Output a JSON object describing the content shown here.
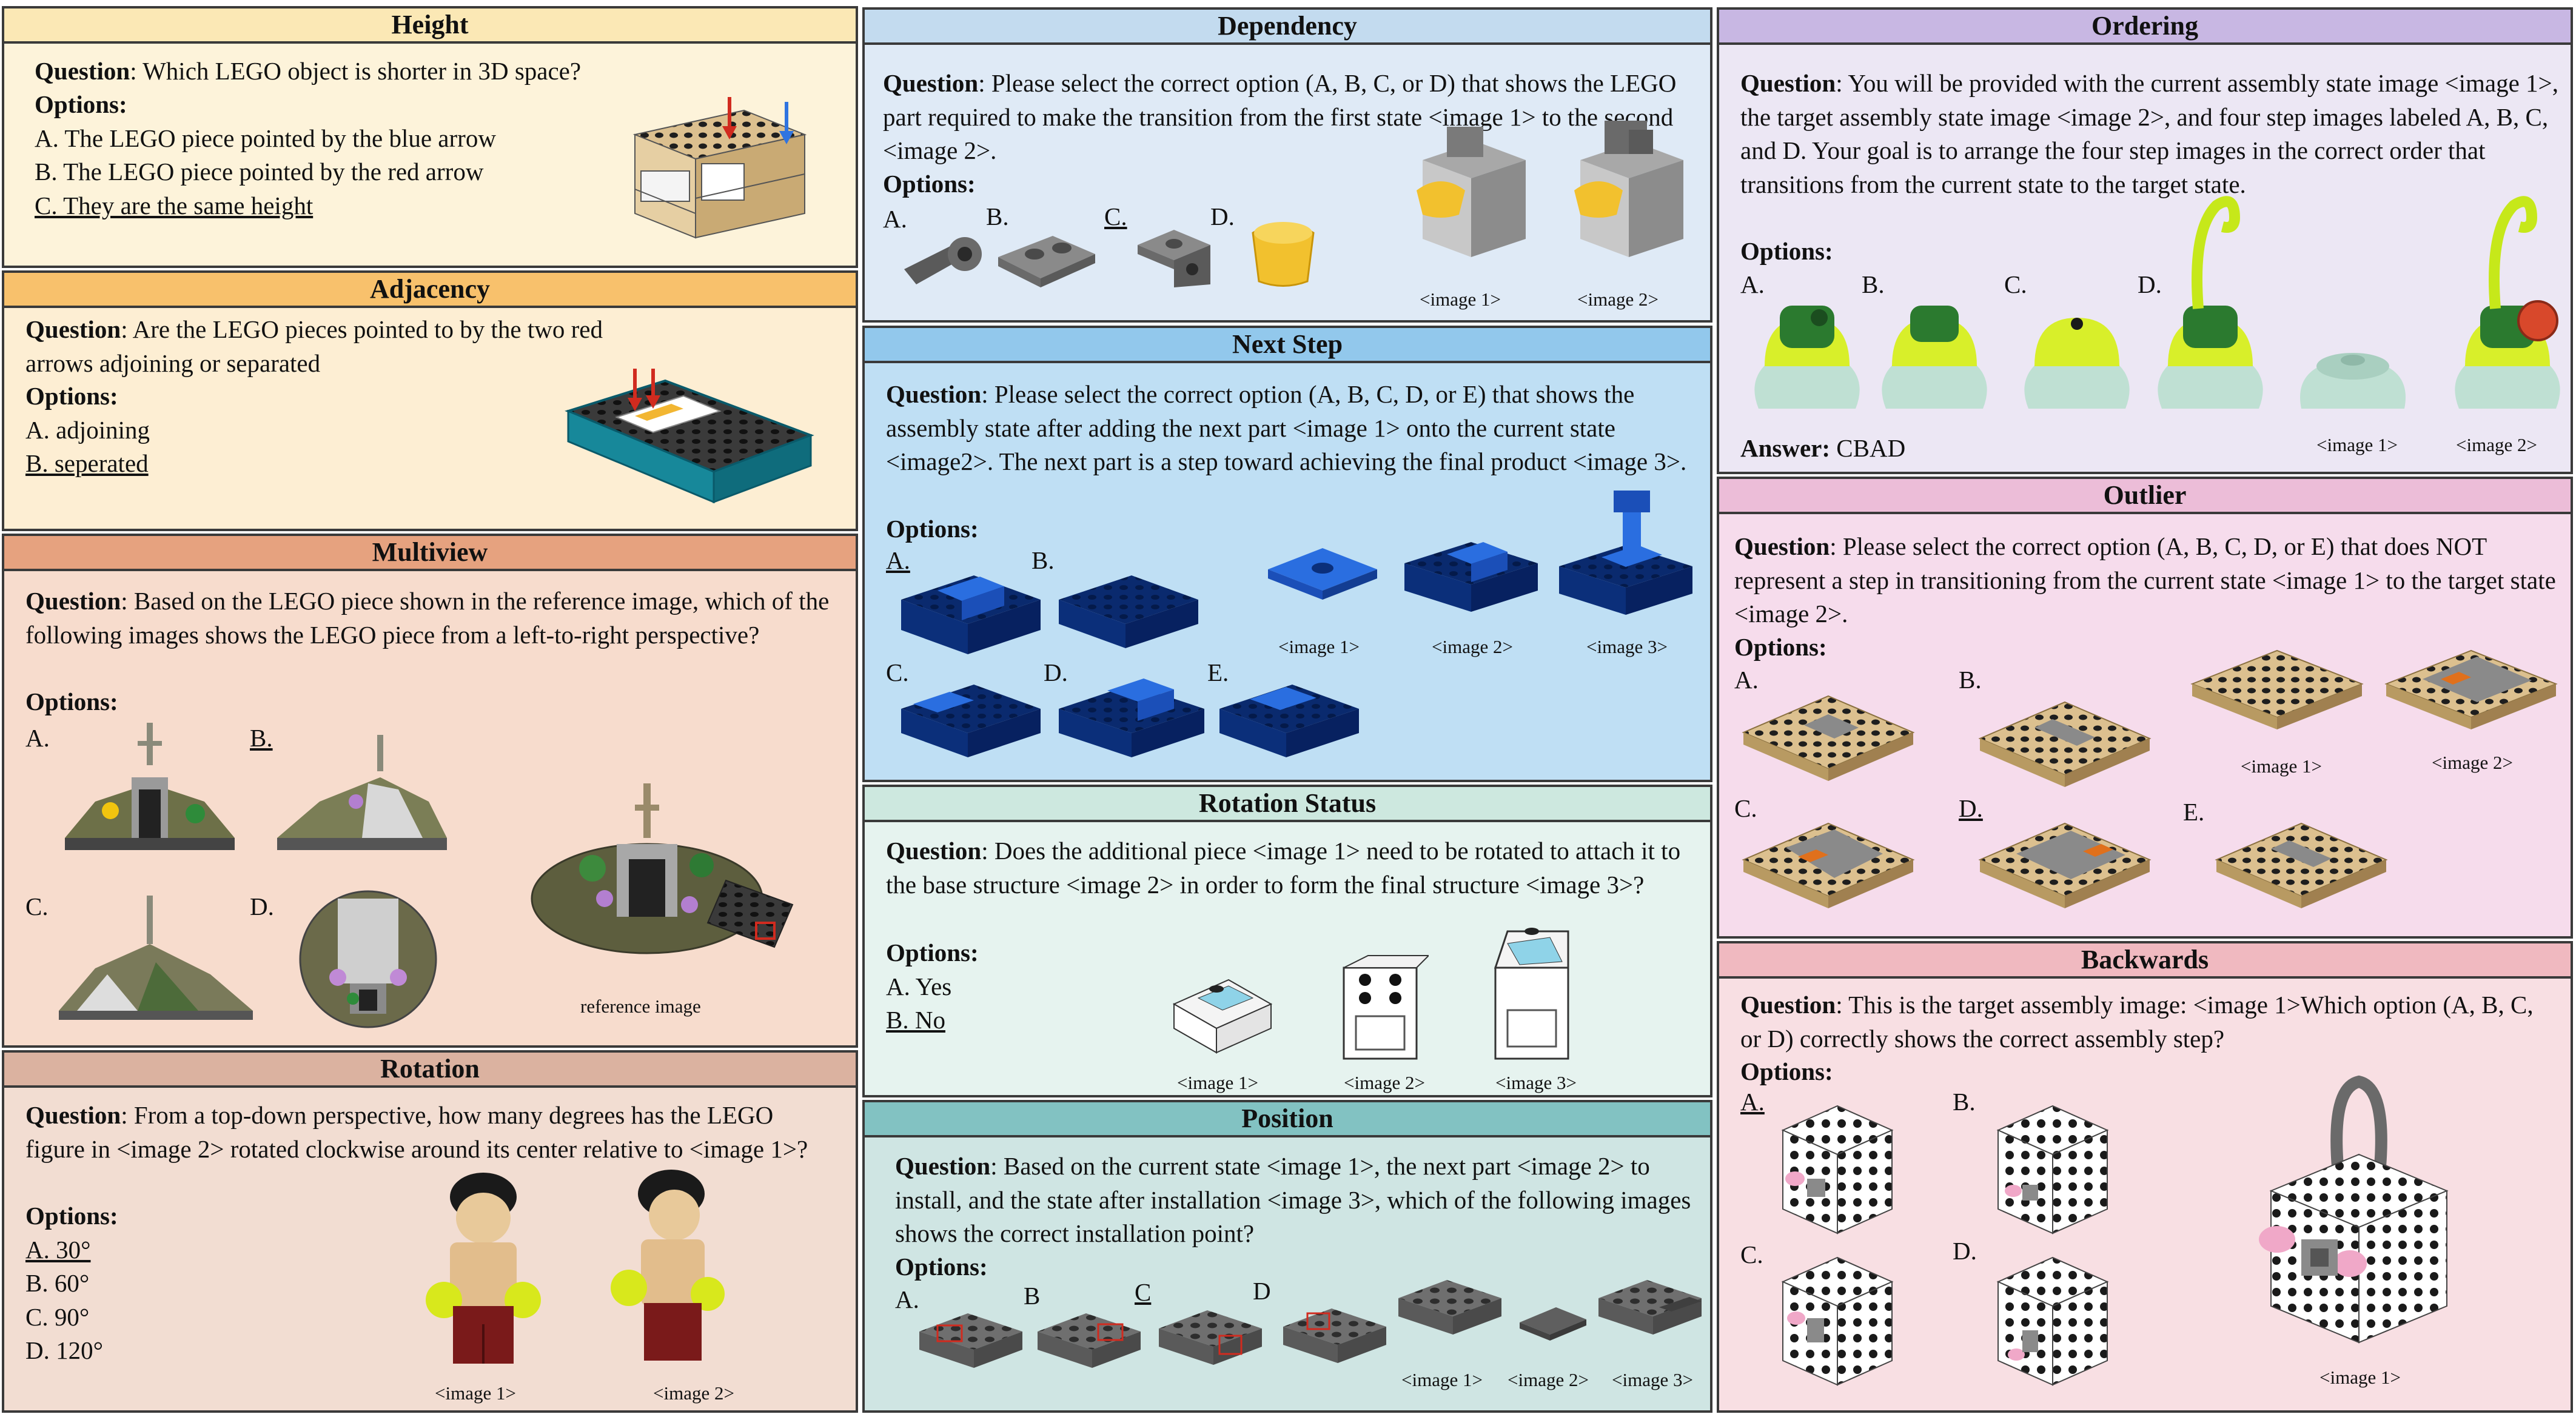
{
  "panels": {
    "height": {
      "title": "Height",
      "q_label": "Question",
      "question": ": Which LEGO object is shorter in 3D space?",
      "options_label": "Options:",
      "options": [
        "A. The LEGO piece pointed by the blue arrow",
        "B. The LEGO piece pointed by the red arrow",
        "C. They are the same height"
      ]
    },
    "adjacency": {
      "title": "Adjacency",
      "q_label": "Question",
      "question": ": Are the LEGO pieces pointed to by the two red arrows adjoining or separated",
      "options_label": "Options:",
      "options": [
        "A. adjoining",
        "B. seperated"
      ]
    },
    "multiview": {
      "title": "Multiview",
      "q_label": "Question",
      "question": ": Based on the LEGO piece shown in the reference image, which of the following images shows the LEGO piece from a left-to-right perspective?",
      "options_label": "Options:",
      "labels": [
        "A.",
        "B.",
        "C.",
        "D."
      ],
      "caption": "reference image"
    },
    "rotation": {
      "title": "Rotation",
      "q_label": "Question",
      "question": ": From a top-down perspective, how many degrees has the LEGO figure in <image 2> rotated clockwise around its center relative to <image 1>?",
      "options_label": "Options:",
      "options": [
        "A. 30°",
        "B. 60°",
        "C. 90°",
        "D. 120°"
      ],
      "captions": [
        "<image 1>",
        "<image 2>"
      ]
    },
    "dependency": {
      "title": "Dependency",
      "q_label": "Question",
      "question": ": Please select the correct option (A, B, C, or D) that shows the LEGO part required to make the transition from the first state <image 1>  to the second <image 2>.",
      "options_label": "Options:",
      "labels": [
        "A.",
        "B.",
        "C.",
        "D."
      ],
      "captions": [
        "<image 1>",
        "<image 2>"
      ]
    },
    "nextstep": {
      "title": "Next Step",
      "q_label": "Question",
      "question": ": Please select the correct option (A, B, C, D, or E) that shows the assembly state after adding the next part <image 1> onto the current state <image2>. The next part is a step toward achieving the final product <image 3>.",
      "options_label": "Options:",
      "labels": [
        "A.",
        "B.",
        "C.",
        "D.",
        "E."
      ],
      "captions": [
        "<image 1>",
        "<image 2>",
        "<image 3>"
      ]
    },
    "rotstatus": {
      "title": "Rotation Status",
      "q_label": "Question",
      "question": ": Does the additional piece <image 1> need to be rotated to attach it to the base structure <image 2> in order to form the final structure <image 3>?",
      "options_label": "Options:",
      "options": [
        "A. Yes",
        "B. No"
      ],
      "captions": [
        "<image 1>",
        "<image 2>",
        "<image 3>"
      ]
    },
    "position": {
      "title": "Position",
      "q_label": "Question",
      "question": ": Based on the current state <image 1>, the next part <image 2> to install, and the state after installation <image 3>, which of the following images shows the correct installation point?",
      "options_label": "Options:",
      "labels": [
        "A.",
        "B",
        "C",
        "D"
      ],
      "captions": [
        "<image 1>",
        "<image 2>",
        "<image 3>"
      ]
    },
    "ordering": {
      "title": "Ordering",
      "q_label": "Question",
      "question": ": You will be provided with the current assembly state image <image 1>, the target assembly state image <image 2>, and four step images labeled A, B, C, and D. Your goal is to arrange the four step images in the correct order that transitions from the current state to the target state.",
      "options_label": "Options:",
      "labels": [
        "A.",
        "B.",
        "C.",
        "D."
      ],
      "answer_label": "Answer:",
      "answer": " CBAD",
      "captions": [
        "<image 1>",
        "<image 2>"
      ]
    },
    "outlier": {
      "title": "Outlier",
      "q_label": "Question",
      "question": ": Please select the correct option (A, B, C, D, or E) that does NOT represent a step in transitioning from the current state <image 1> to the target state <image 2>.",
      "options_label": "Options:",
      "labels": [
        "A.",
        "B.",
        "C.",
        "D.",
        "E."
      ],
      "captions": [
        "<image 1>",
        "<image 2>"
      ]
    },
    "backwards": {
      "title": "Backwards",
      "q_label": "Question",
      "question": ": This is the target assembly image: <image 1>Which option (A, B, C, or D) correctly shows the correct assembly step?",
      "options_label": "Options:",
      "labels": [
        "A.",
        "B.",
        "C.",
        "D."
      ],
      "caption": "<image 1>"
    }
  },
  "colors": {
    "height": "#fdf3da",
    "height_title": "#fbe8b5",
    "adjacency": "#fdeed3",
    "adjacency_title": "#f8c16c",
    "multiview": "#f7dccd",
    "multiview_title": "#e6a27f",
    "rotation": "#f2ddd2",
    "rotation_title": "#dbb2a0",
    "dependency": "#dfeaf6",
    "dependency_title": "#c3dbef",
    "nextstep": "#bfdff4",
    "nextstep_title": "#92c8ec",
    "rotstatus": "#e6f3ef",
    "rotstatus_title": "#cde8df",
    "position": "#cfe5e3",
    "position_title": "#82c2c2",
    "ordering": "#ece7f4",
    "ordering_title": "#c8b7e3",
    "outlier": "#f6dcec",
    "outlier_title": "#ecbdd8",
    "backwards": "#f8dfe3",
    "backwards_title": "#f0b9c0"
  }
}
